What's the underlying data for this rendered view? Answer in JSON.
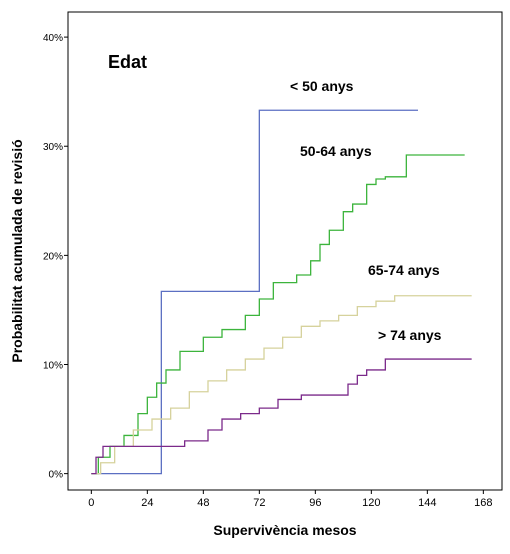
{
  "chart_data": {
    "type": "step",
    "legend_title": "Edat",
    "x_label": "Supervivència mesos",
    "y_label": "Probabilitat acumulada de revisió",
    "xlim": [
      -10,
      176
    ],
    "xticks": [
      0,
      24,
      48,
      72,
      96,
      120,
      144,
      168
    ],
    "ylim": [
      -1.5,
      42.3
    ],
    "yticks": [
      {
        "value": 0,
        "label": "0%"
      },
      {
        "value": 10,
        "label": "10%"
      },
      {
        "value": 20,
        "label": "20%"
      },
      {
        "value": 30,
        "label": "30%"
      },
      {
        "value": 40,
        "label": "40%"
      }
    ],
    "series": [
      {
        "name": "< 50 anys",
        "color": "#5b6fc2",
        "x": [
          0,
          30,
          72,
          140
        ],
        "values": [
          0,
          16.7,
          33.3,
          33.3
        ]
      },
      {
        "name": "50-64 anys",
        "color": "#3cb43c",
        "x": [
          0,
          3,
          8,
          14,
          20,
          24,
          28,
          32,
          38,
          48,
          56,
          66,
          72,
          78,
          88,
          94,
          98,
          102,
          108,
          112,
          118,
          122,
          126,
          135,
          160
        ],
        "values": [
          0,
          1.5,
          2.5,
          3.5,
          5.5,
          7,
          8.3,
          9.5,
          11.2,
          12.5,
          13.2,
          14.5,
          16,
          17.5,
          18.2,
          19.5,
          21,
          22.3,
          24,
          24.7,
          26.5,
          27,
          27.2,
          29.2,
          29.2
        ]
      },
      {
        "name": "65-74 anys",
        "color": "#d6d29c",
        "x": [
          0,
          4,
          10,
          18,
          26,
          34,
          42,
          50,
          58,
          66,
          74,
          82,
          90,
          98,
          106,
          114,
          122,
          130,
          140,
          163
        ],
        "values": [
          0,
          1,
          2.5,
          4,
          5,
          6,
          7.5,
          8.5,
          9.5,
          10.5,
          11.5,
          12.5,
          13.5,
          14,
          14.5,
          15.3,
          15.8,
          16.3,
          16.3,
          16.3
        ]
      },
      {
        "name": "> 74 anys",
        "color": "#7b2a8a",
        "x": [
          0,
          2,
          5,
          30,
          40,
          50,
          56,
          64,
          72,
          80,
          90,
          100,
          110,
          114,
          118,
          126,
          163
        ],
        "values": [
          0,
          1.5,
          2.5,
          2.5,
          3,
          4,
          5,
          5.5,
          6,
          6.8,
          7.2,
          7.2,
          8.2,
          9,
          9.5,
          10.5,
          10.5
        ]
      }
    ]
  }
}
